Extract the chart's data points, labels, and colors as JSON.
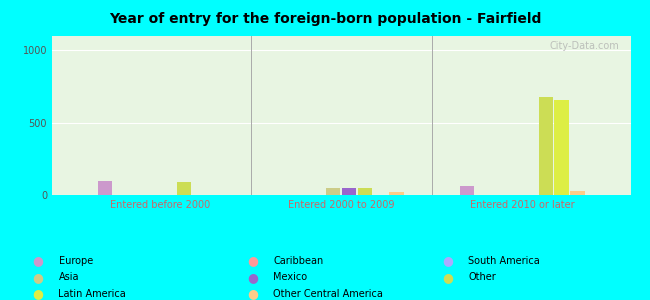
{
  "title": "Year of entry for the foreign-born population - Fairfield",
  "background_color": "#00ffff",
  "plot_bg_color_top": "#e8f5e2",
  "plot_bg_color_bottom": "#f0faf0",
  "categories": [
    "Entered before 2000",
    "Entered 2000 to 2009",
    "Entered 2010 or later"
  ],
  "series": {
    "Europe": {
      "color": "#cc99cc",
      "values": [
        100,
        0,
        60
      ]
    },
    "Caribbean": {
      "color": "#ff9999",
      "values": [
        0,
        0,
        0
      ]
    },
    "South America": {
      "color": "#aaaaff",
      "values": [
        0,
        0,
        0
      ]
    },
    "Asia": {
      "color": "#cccc88",
      "values": [
        0,
        50,
        0
      ]
    },
    "Mexico": {
      "color": "#9966cc",
      "values": [
        0,
        50,
        0
      ]
    },
    "Other": {
      "color": "#ccdd55",
      "values": [
        90,
        50,
        680
      ]
    },
    "Latin America": {
      "color": "#ddee44",
      "values": [
        0,
        0,
        660
      ]
    },
    "Other Central America": {
      "color": "#ffcc88",
      "values": [
        0,
        20,
        30
      ]
    }
  },
  "ylim": [
    0,
    1100
  ],
  "yticks": [
    0,
    500,
    1000
  ],
  "watermark": "City-Data.com",
  "legend_items": [
    {
      "label": "Europe",
      "color": "#cc99cc"
    },
    {
      "label": "Asia",
      "color": "#cccc88"
    },
    {
      "label": "Latin America",
      "color": "#ddee44"
    },
    {
      "label": "Caribbean",
      "color": "#ff9999"
    },
    {
      "label": "Mexico",
      "color": "#9966cc"
    },
    {
      "label": "Other Central America",
      "color": "#ffcc88"
    },
    {
      "label": "South America",
      "color": "#aaaaff"
    },
    {
      "label": "Other",
      "color": "#ccdd55"
    }
  ]
}
